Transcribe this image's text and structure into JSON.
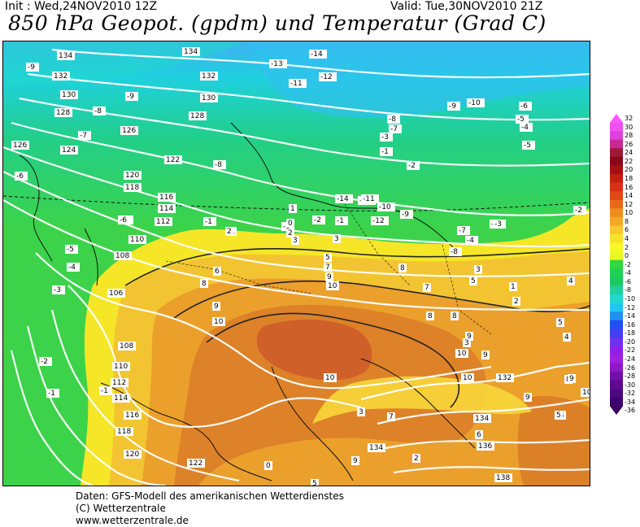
{
  "header": {
    "init": "Init : Wed,24NOV2010 12Z",
    "valid": "Valid: Tue,30NOV2010 21Z",
    "title": "850 hPa Geopot. (gpdm) und Temperatur (Grad C)"
  },
  "footer": {
    "line1": "Daten: GFS-Modell des amerikanischen Wetterdienstes",
    "line2": "(C) Wetterzentrale",
    "line3": "www.wetterzentrale.de"
  },
  "colors": {
    "very_cold": "#3fa8f0",
    "cold": "#1fd8d0",
    "cool": "#22c870",
    "green": "#3fd640",
    "zero": "#f5f020",
    "warm": "#f0c030",
    "warmer": "#e89a2a",
    "hot": "#d77a25",
    "hottest": "#cf5f28"
  },
  "colorbar": {
    "labels": [
      "32",
      "30",
      "28",
      "26",
      "24",
      "22",
      "20",
      "18",
      "16",
      "14",
      "12",
      "10",
      "8",
      "6",
      "4",
      "2",
      "0",
      "-2",
      "-4",
      "-6",
      "-8",
      "-10",
      "-12",
      "-14",
      "-16",
      "-18",
      "-20",
      "-22",
      "-24",
      "-26",
      "-28",
      "-30",
      "-32",
      "-34",
      "-36"
    ],
    "colors": [
      "#ff58ff",
      "#f050f0",
      "#e040d8",
      "#c82890",
      "#a01838",
      "#880818",
      "#a81010",
      "#c02010",
      "#d83018",
      "#e04818",
      "#e86818",
      "#f08c20",
      "#f4a828",
      "#f8c830",
      "#f8e028",
      "#f8f828",
      "#e8f820",
      "#30d840",
      "#20d050",
      "#20c860",
      "#20d0a0",
      "#20d8d0",
      "#20c8f0",
      "#2090f0",
      "#2050f0",
      "#4040f0",
      "#7030f0",
      "#9020e8",
      "#a020e0",
      "#9018c8",
      "#7010a8",
      "#600890",
      "#500880",
      "#400070",
      "#380060"
    ]
  },
  "geopot_labels": [
    {
      "t": "134"
    },
    {
      "t": "134"
    },
    {
      "t": "132"
    },
    {
      "t": "132"
    },
    {
      "t": "130"
    },
    {
      "t": "130"
    },
    {
      "t": "128"
    },
    {
      "t": "128"
    },
    {
      "t": "126"
    },
    {
      "t": "126"
    },
    {
      "t": "124"
    },
    {
      "t": "122"
    },
    {
      "t": "120"
    },
    {
      "t": "118"
    },
    {
      "t": "116"
    },
    {
      "t": "114"
    },
    {
      "t": "112"
    },
    {
      "t": "110"
    },
    {
      "t": "108"
    },
    {
      "t": "106"
    },
    {
      "t": "108"
    },
    {
      "t": "110"
    },
    {
      "t": "112"
    },
    {
      "t": "114"
    },
    {
      "t": "116"
    },
    {
      "t": "118"
    },
    {
      "t": "120"
    },
    {
      "t": "122"
    },
    {
      "t": "132"
    },
    {
      "t": "134"
    },
    {
      "t": "134"
    },
    {
      "t": "136"
    },
    {
      "t": "138"
    }
  ],
  "temp_labels": [
    {
      "t": "-9"
    },
    {
      "t": "-8"
    },
    {
      "t": "-9"
    },
    {
      "t": "-7"
    },
    {
      "t": "-8"
    },
    {
      "t": "-6"
    },
    {
      "t": "-6"
    },
    {
      "t": "-5"
    },
    {
      "t": "-4"
    },
    {
      "t": "-3"
    },
    {
      "t": "-2"
    },
    {
      "t": "-1"
    },
    {
      "t": "-1"
    },
    {
      "t": "-14"
    },
    {
      "t": "-13"
    },
    {
      "t": "-12"
    },
    {
      "t": "-11"
    },
    {
      "t": "-10"
    },
    {
      "t": "-9"
    },
    {
      "t": "-8"
    },
    {
      "t": "-7"
    },
    {
      "t": "-6"
    },
    {
      "t": "-5"
    },
    {
      "t": "-4"
    },
    {
      "t": "-5"
    },
    {
      "t": "-2"
    },
    {
      "t": "-1"
    },
    {
      "t": "-3"
    },
    {
      "t": "-1"
    },
    {
      "t": "-3"
    },
    {
      "t": "-2"
    },
    {
      "t": "-1"
    },
    {
      "t": "-14"
    },
    {
      "t": "-13"
    },
    {
      "t": "-12"
    },
    {
      "t": "-11"
    },
    {
      "t": "-10"
    },
    {
      "t": "-9"
    },
    {
      "t": "-8"
    },
    {
      "t": "-7"
    },
    {
      "t": "-5"
    },
    {
      "t": "-4"
    },
    {
      "t": "-3"
    },
    {
      "t": "-2"
    },
    {
      "t": "-6"
    },
    {
      "t": "0"
    },
    {
      "t": "2"
    },
    {
      "t": "1"
    },
    {
      "t": "3"
    },
    {
      "t": "5"
    },
    {
      "t": "7"
    },
    {
      "t": "9"
    },
    {
      "t": "10"
    },
    {
      "t": "8"
    },
    {
      "t": "7"
    },
    {
      "t": "9"
    },
    {
      "t": "10"
    },
    {
      "t": "8"
    },
    {
      "t": "6"
    },
    {
      "t": "8"
    },
    {
      "t": "10"
    },
    {
      "t": "8"
    },
    {
      "t": "9"
    },
    {
      "t": "10"
    },
    {
      "t": "9"
    },
    {
      "t": "10"
    },
    {
      "t": "3"
    },
    {
      "t": "5"
    },
    {
      "t": "1"
    },
    {
      "t": "2"
    },
    {
      "t": "3"
    },
    {
      "t": "4"
    },
    {
      "t": "5"
    },
    {
      "t": "4"
    },
    {
      "t": "8"
    },
    {
      "t": "9"
    },
    {
      "t": "9"
    },
    {
      "t": "10"
    },
    {
      "t": "4"
    },
    {
      "t": "5"
    },
    {
      "t": "3"
    },
    {
      "t": "7"
    },
    {
      "t": "6"
    },
    {
      "t": "9"
    },
    {
      "t": "5"
    },
    {
      "t": "2"
    },
    {
      "t": "0"
    },
    {
      "t": "1"
    },
    {
      "t": "2"
    },
    {
      "t": "3"
    }
  ]
}
